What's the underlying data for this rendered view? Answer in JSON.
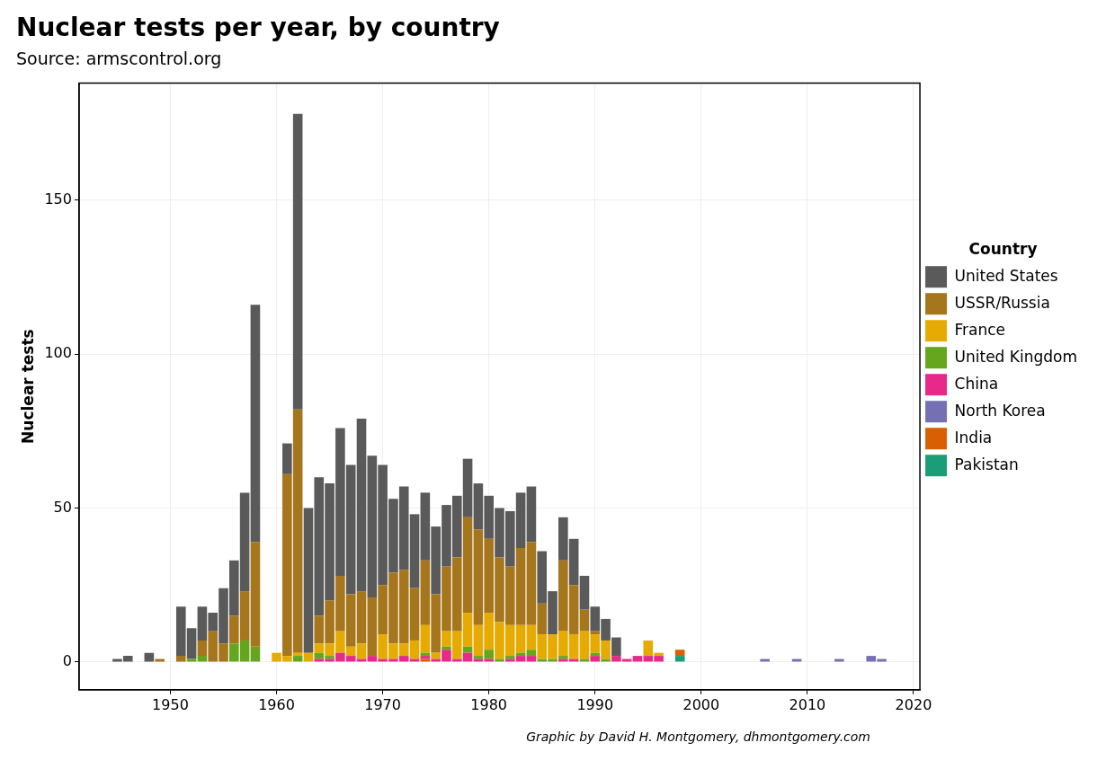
{
  "chart_data": {
    "type": "bar",
    "title": "Nuclear tests per year, by country",
    "subtitle": "Source: armscontrol.org",
    "ylabel": "Nuclear tests",
    "legend_title": "Country",
    "annotations": [
      "Graphic by David H. Montgomery, dhmontgomery.com"
    ],
    "stacked": true,
    "legend": "right",
    "grid": true,
    "xlim": [
      1941.4,
      2020.6
    ],
    "xticks": [
      1950,
      1960,
      1970,
      1980,
      1990,
      2000,
      2010,
      2020
    ],
    "ylim": [
      -9,
      188
    ],
    "yticks": [
      0,
      50,
      100,
      150
    ],
    "x": [
      1945,
      1946,
      1947,
      1948,
      1949,
      1950,
      1951,
      1952,
      1953,
      1954,
      1955,
      1956,
      1957,
      1958,
      1959,
      1960,
      1961,
      1962,
      1963,
      1964,
      1965,
      1966,
      1967,
      1968,
      1969,
      1970,
      1971,
      1972,
      1973,
      1974,
      1975,
      1976,
      1977,
      1978,
      1979,
      1980,
      1981,
      1982,
      1983,
      1984,
      1985,
      1986,
      1987,
      1988,
      1989,
      1990,
      1991,
      1992,
      1993,
      1994,
      1995,
      1996,
      1997,
      1998,
      2006,
      2009,
      2013,
      2016,
      2017
    ],
    "series": [
      {
        "name": "Pakistan",
        "color": "#1b9e77",
        "values": [
          0,
          0,
          0,
          0,
          0,
          0,
          0,
          0,
          0,
          0,
          0,
          0,
          0,
          0,
          0,
          0,
          0,
          0,
          0,
          0,
          0,
          0,
          0,
          0,
          0,
          0,
          0,
          0,
          0,
          0,
          0,
          0,
          0,
          0,
          0,
          0,
          0,
          0,
          0,
          0,
          0,
          0,
          0,
          0,
          0,
          0,
          0,
          0,
          0,
          0,
          0,
          0,
          0,
          2,
          0,
          0,
          0,
          0,
          0
        ]
      },
      {
        "name": "India",
        "color": "#d95f02",
        "values": [
          0,
          0,
          0,
          0,
          0,
          0,
          0,
          0,
          0,
          0,
          0,
          0,
          0,
          0,
          0,
          0,
          0,
          0,
          0,
          0,
          0,
          0,
          0,
          0,
          0,
          0,
          0,
          0,
          0,
          1,
          0,
          0,
          0,
          0,
          0,
          0,
          0,
          0,
          0,
          0,
          0,
          0,
          0,
          0,
          0,
          0,
          0,
          0,
          0,
          0,
          0,
          0,
          0,
          2,
          0,
          0,
          0,
          0,
          0
        ]
      },
      {
        "name": "North Korea",
        "color": "#7570b3",
        "values": [
          0,
          0,
          0,
          0,
          0,
          0,
          0,
          0,
          0,
          0,
          0,
          0,
          0,
          0,
          0,
          0,
          0,
          0,
          0,
          0,
          0,
          0,
          0,
          0,
          0,
          0,
          0,
          0,
          0,
          0,
          0,
          0,
          0,
          0,
          0,
          0,
          0,
          0,
          0,
          0,
          0,
          0,
          0,
          0,
          0,
          0,
          0,
          0,
          0,
          0,
          0,
          0,
          0,
          0,
          1,
          1,
          1,
          2,
          1
        ]
      },
      {
        "name": "China",
        "color": "#e7298a",
        "values": [
          0,
          0,
          0,
          0,
          0,
          0,
          0,
          0,
          0,
          0,
          0,
          0,
          0,
          0,
          0,
          0,
          0,
          0,
          0,
          1,
          1,
          3,
          2,
          1,
          2,
          1,
          1,
          2,
          1,
          1,
          1,
          4,
          1,
          3,
          1,
          1,
          0,
          1,
          2,
          2,
          0,
          0,
          1,
          1,
          0,
          2,
          0,
          2,
          1,
          2,
          2,
          2,
          0,
          0,
          0,
          0,
          0,
          0,
          0
        ]
      },
      {
        "name": "United Kingdom",
        "color": "#66a61e",
        "values": [
          0,
          0,
          0,
          0,
          0,
          0,
          0,
          1,
          2,
          0,
          0,
          6,
          7,
          5,
          0,
          0,
          0,
          2,
          0,
          2,
          1,
          0,
          0,
          0,
          0,
          0,
          0,
          0,
          0,
          1,
          0,
          1,
          0,
          2,
          1,
          3,
          1,
          1,
          1,
          2,
          1,
          1,
          1,
          0,
          1,
          1,
          1,
          0,
          0,
          0,
          0,
          0,
          0,
          0,
          0,
          0,
          0,
          0,
          0
        ]
      },
      {
        "name": "France",
        "color": "#e6ab02",
        "values": [
          0,
          0,
          0,
          0,
          0,
          0,
          0,
          0,
          0,
          0,
          0,
          0,
          0,
          0,
          0,
          3,
          2,
          1,
          3,
          3,
          4,
          7,
          3,
          5,
          0,
          8,
          5,
          4,
          6,
          9,
          2,
          5,
          9,
          11,
          10,
          12,
          12,
          10,
          9,
          8,
          8,
          8,
          8,
          8,
          9,
          6,
          6,
          0,
          0,
          0,
          5,
          1,
          0,
          0,
          0,
          0,
          0,
          0,
          0
        ]
      },
      {
        "name": "USSR/Russia",
        "color": "#a6761d",
        "values": [
          0,
          0,
          0,
          0,
          1,
          0,
          2,
          0,
          5,
          10,
          6,
          9,
          16,
          34,
          0,
          0,
          59,
          79,
          0,
          9,
          14,
          18,
          17,
          17,
          19,
          16,
          23,
          24,
          17,
          21,
          19,
          21,
          24,
          31,
          31,
          24,
          21,
          19,
          25,
          27,
          10,
          0,
          23,
          16,
          7,
          1,
          0,
          0,
          0,
          0,
          0,
          0,
          0,
          0,
          0,
          0,
          0,
          0,
          0
        ]
      },
      {
        "name": "United States",
        "color": "#5a5a5a",
        "values": [
          1,
          2,
          0,
          3,
          0,
          0,
          16,
          10,
          11,
          6,
          18,
          18,
          32,
          77,
          0,
          0,
          10,
          96,
          47,
          45,
          38,
          48,
          42,
          56,
          46,
          39,
          24,
          27,
          24,
          22,
          22,
          20,
          20,
          19,
          15,
          14,
          16,
          18,
          18,
          18,
          17,
          14,
          14,
          15,
          11,
          8,
          7,
          6,
          0,
          0,
          0,
          0,
          0,
          0,
          0,
          0,
          0,
          0,
          0
        ]
      }
    ]
  }
}
